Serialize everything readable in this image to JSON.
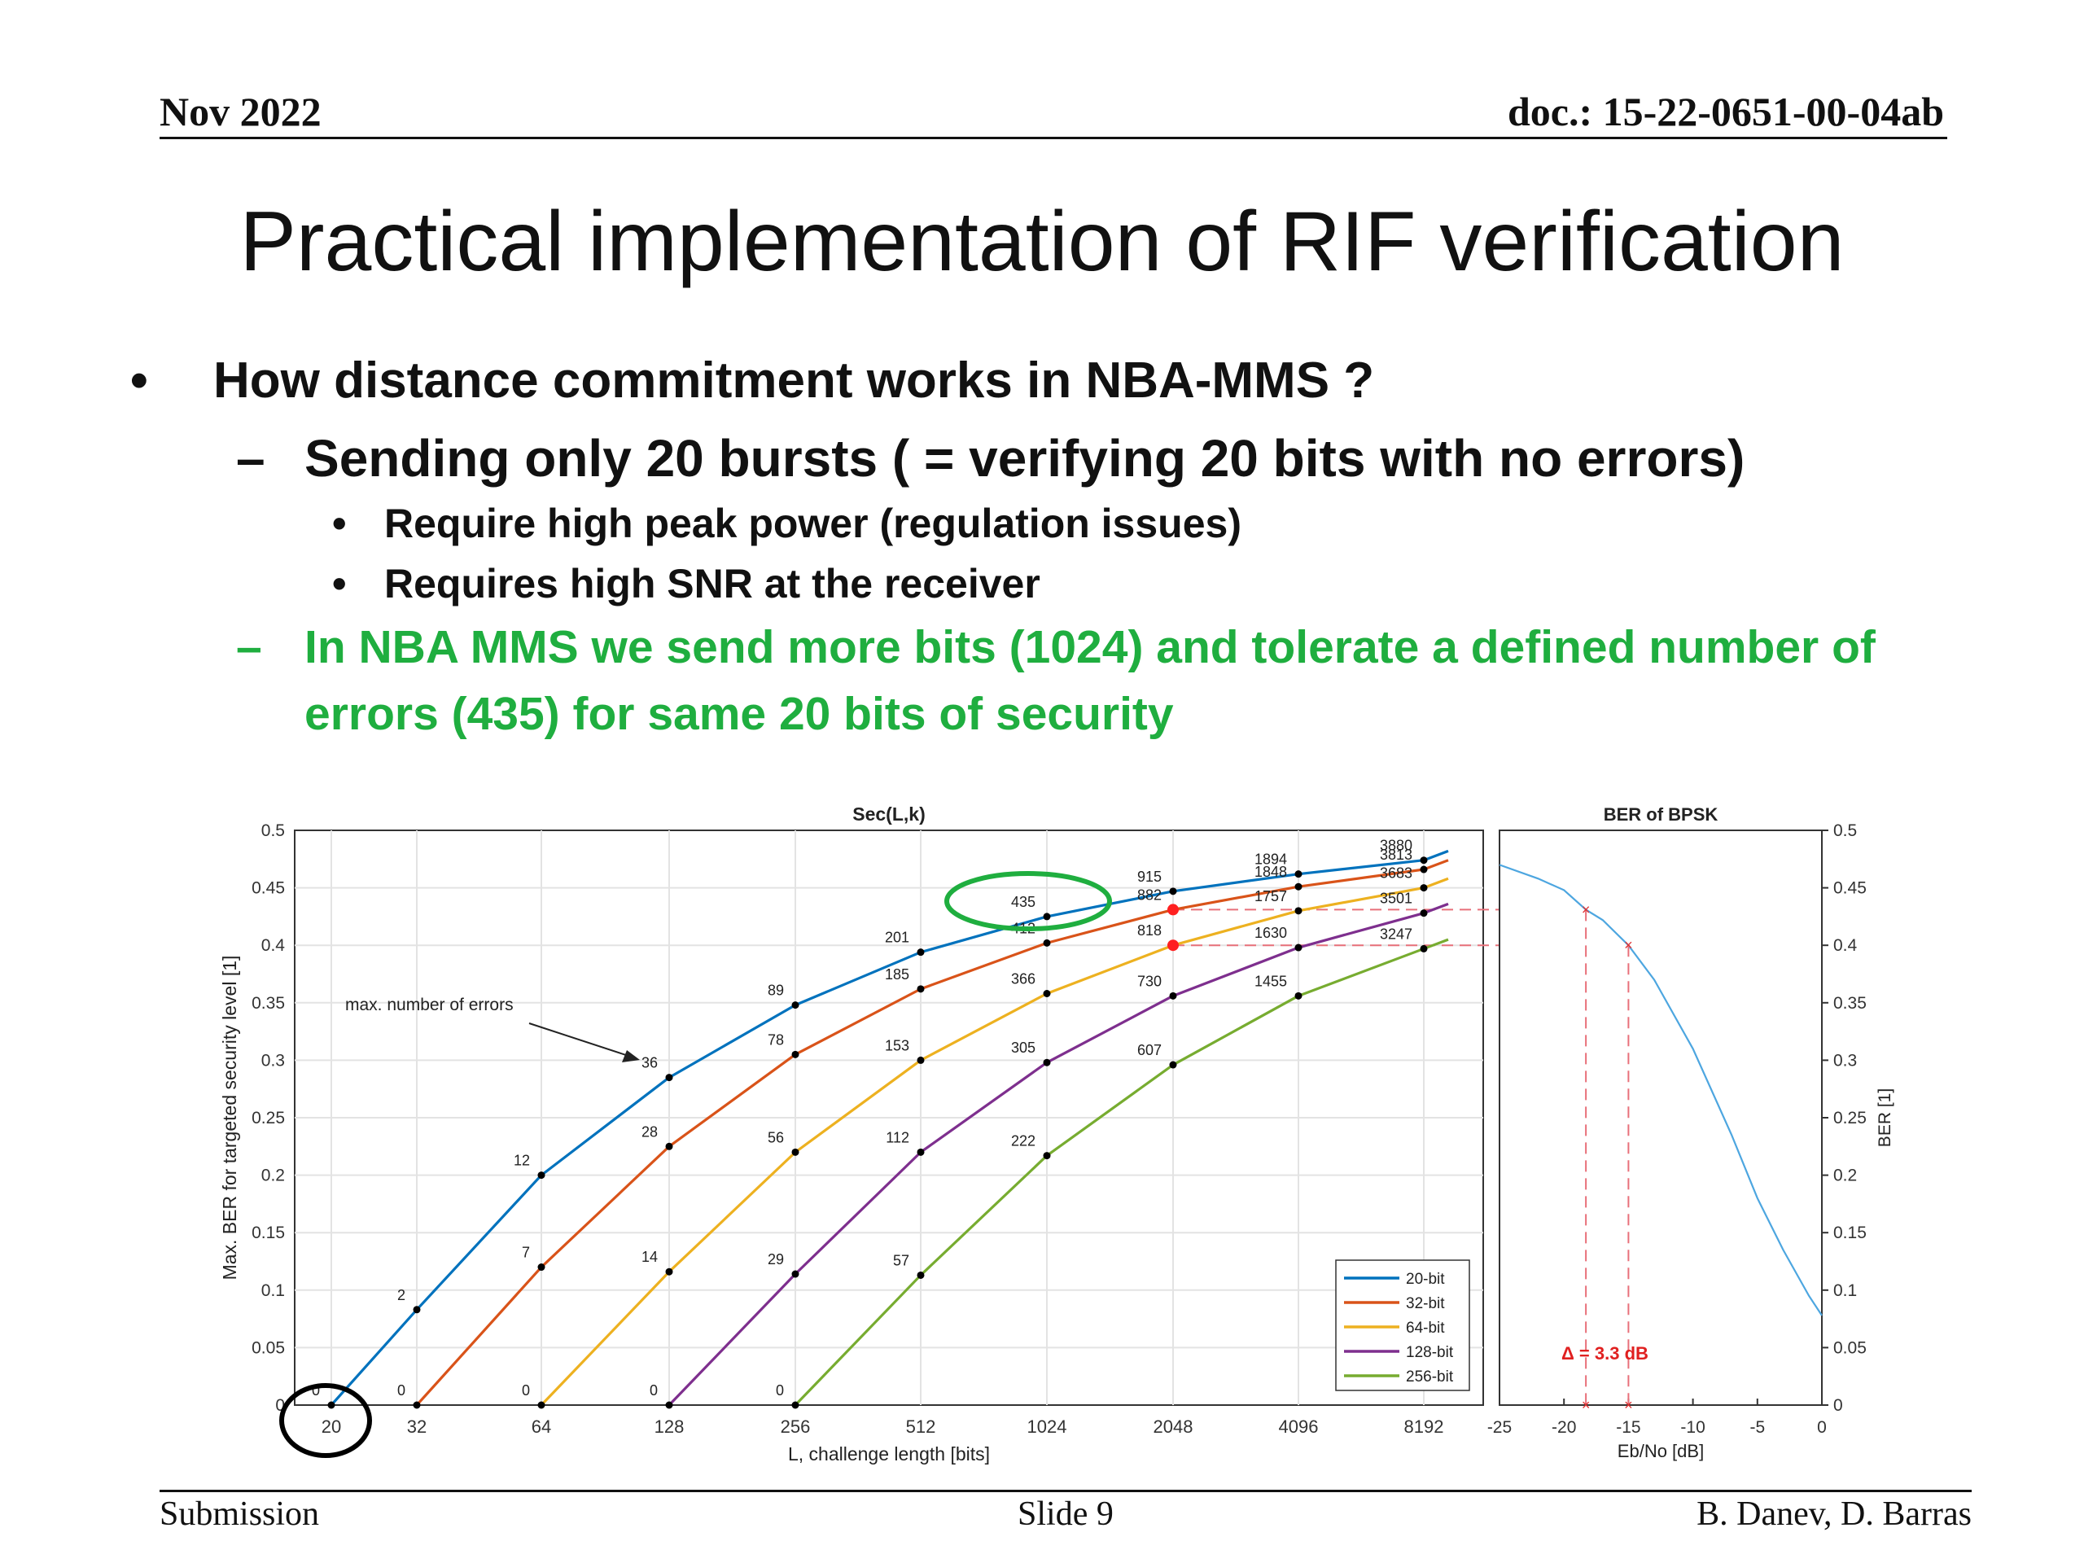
{
  "header": {
    "date": "Nov 2022",
    "doc": "doc.: 15-22-0651-00-04ab"
  },
  "title": "Practical implementation of RIF verification",
  "bullets": {
    "b1": "How distance commitment works in NBA-MMS ?",
    "b2": "Sending only 20 bursts ( = verifying 20 bits with no errors)",
    "b3": "Require high peak power (regulation issues)",
    "b4": "Requires high SNR at the receiver",
    "b5_line1": "In NBA MMS we send more bits (1024) and tolerate a defined number of",
    "b5_line2": "errors (435) for same 20 bits of security",
    "symbols": {
      "dot": "•",
      "dash": "–"
    }
  },
  "footer": {
    "left": "Submission",
    "center": "Slide 9",
    "right": "B. Danev, D. Barras"
  },
  "colors": {
    "green_text": "#1fae3f",
    "s20": "#0072bd",
    "s32": "#d95319",
    "s64": "#edb120",
    "s128": "#7e2f8e",
    "s256": "#77ac30",
    "ber": "#4da6e0",
    "marker_red": "#ff2020",
    "guide": "#e8707a"
  },
  "chart_data": [
    {
      "type": "line",
      "title": "Sec(L,k)",
      "xlabel": "L, challenge length [bits]",
      "ylabel": "Max. BER for targeted security level [1]",
      "x_scale": "log2",
      "x": [
        20,
        32,
        64,
        128,
        256,
        512,
        1024,
        2048,
        4096,
        8192
      ],
      "xticks": [
        "20",
        "32",
        "64",
        "128",
        "256",
        "512",
        "1024",
        "2048",
        "4096",
        "8192"
      ],
      "ylim": [
        0,
        0.5
      ],
      "yticks": [
        "0",
        "0.05",
        "0.1",
        "0.15",
        "0.2",
        "0.25",
        "0.3",
        "0.35",
        "0.4",
        "0.45",
        "0.5"
      ],
      "grid": true,
      "legend_position": "bottom-right",
      "annotation": "max. number of errors",
      "series": [
        {
          "name": "20-bit",
          "color_key": "s20",
          "x": [
            20,
            32,
            64,
            128,
            256,
            512,
            1024,
            2048,
            4096,
            8192
          ],
          "y": [
            0,
            0.083,
            0.2,
            0.285,
            0.348,
            0.394,
            0.425,
            0.447,
            0.462,
            0.474
          ],
          "labels": [
            "0",
            "2",
            "12",
            "36",
            "89",
            "201",
            "435",
            "915",
            "1894",
            "3880"
          ]
        },
        {
          "name": "32-bit",
          "color_key": "s32",
          "x": [
            32,
            64,
            128,
            256,
            512,
            1024,
            2048,
            4096,
            8192
          ],
          "y": [
            0,
            0.12,
            0.225,
            0.305,
            0.362,
            0.402,
            0.431,
            0.451,
            0.466
          ],
          "labels": [
            "0",
            "7",
            "28",
            "78",
            "185",
            "412",
            "882",
            "1848",
            "3813"
          ]
        },
        {
          "name": "64-bit",
          "color_key": "s64",
          "x": [
            64,
            128,
            256,
            512,
            1024,
            2048,
            4096,
            8192
          ],
          "y": [
            0,
            0.116,
            0.22,
            0.3,
            0.358,
            0.4,
            0.43,
            0.45
          ],
          "labels": [
            "0",
            "14",
            "56",
            "153",
            "366",
            "818",
            "1757",
            "3683"
          ]
        },
        {
          "name": "128-bit",
          "color_key": "s128",
          "x": [
            128,
            256,
            512,
            1024,
            2048,
            4096,
            8192
          ],
          "y": [
            0,
            0.114,
            0.22,
            0.298,
            0.356,
            0.398,
            0.428
          ],
          "labels": [
            "0",
            "29",
            "112",
            "305",
            "730",
            "1630",
            "3501"
          ]
        },
        {
          "name": "256-bit",
          "color_key": "s256",
          "x": [
            256,
            512,
            1024,
            2048,
            4096,
            8192
          ],
          "y": [
            0,
            0.113,
            0.217,
            0.296,
            0.356,
            0.397
          ],
          "labels": [
            "0",
            "57",
            "222",
            "607",
            "1455",
            "3247"
          ]
        }
      ]
    },
    {
      "type": "line",
      "title": "BER of BPSK",
      "xlabel": "Eb/No [dB]",
      "ylabel": "BER [1]",
      "xlim": [
        -25,
        0
      ],
      "xticks": [
        "-25",
        "-20",
        "-15",
        "-10",
        "-5",
        "0"
      ],
      "ylim": [
        0,
        0.5
      ],
      "yticks": [
        "0",
        "0.05",
        "0.1",
        "0.15",
        "0.2",
        "0.25",
        "0.3",
        "0.35",
        "0.4",
        "0.45",
        "0.5"
      ],
      "grid": false,
      "annotation": "Δ = 3.3 dB",
      "markers": [
        {
          "x": -18.3,
          "y": 0.431
        },
        {
          "x": -15.0,
          "y": 0.4
        }
      ],
      "series": [
        {
          "x": [
            -25,
            -22,
            -20,
            -18.3,
            -17,
            -15,
            -13,
            -10,
            -7,
            -5,
            -3,
            -1,
            0
          ],
          "y": [
            0.47,
            0.458,
            0.448,
            0.431,
            0.422,
            0.4,
            0.37,
            0.31,
            0.235,
            0.18,
            0.135,
            0.095,
            0.078
          ]
        }
      ]
    }
  ]
}
